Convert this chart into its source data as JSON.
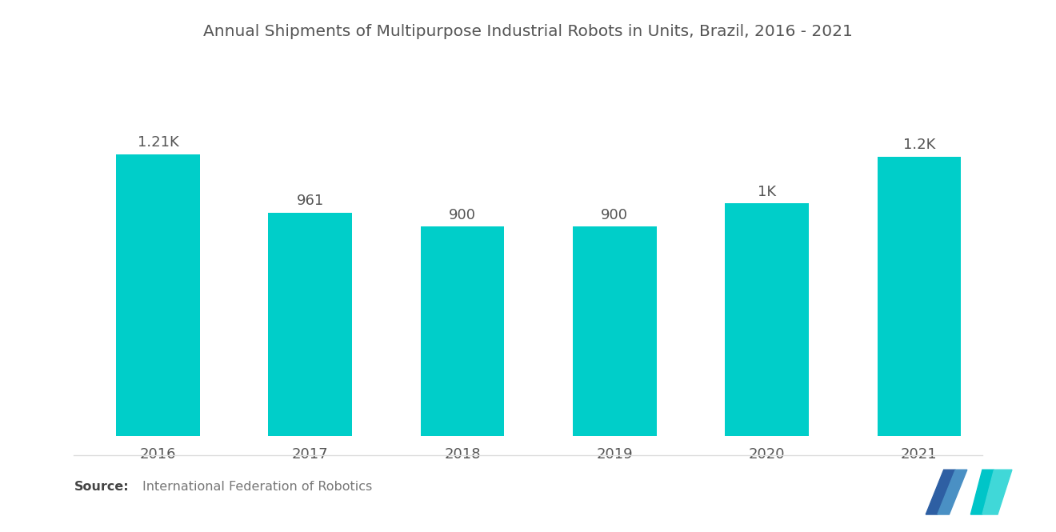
{
  "title": "Annual Shipments of Multipurpose Industrial Robots in Units, Brazil, 2016 - 2021",
  "categories": [
    "2016",
    "2017",
    "2018",
    "2019",
    "2020",
    "2021"
  ],
  "values": [
    1210,
    961,
    900,
    900,
    1000,
    1200
  ],
  "labels": [
    "1.21K",
    "961",
    "900",
    "900",
    "1K",
    "1.2K"
  ],
  "bar_color": "#00CEC9",
  "background_color": "#FFFFFF",
  "ylim": [
    0,
    1600
  ],
  "bar_width": 0.55,
  "title_fontsize": 14.5,
  "label_fontsize": 13,
  "tick_fontsize": 13,
  "source_bold": "Source:",
  "source_detail": "  International Federation of Robotics",
  "source_fontsize": 11.5,
  "logo_colors": {
    "left_dark": "#2E5FA3",
    "left_light": "#4A90C4",
    "right_teal": "#00C5C8",
    "right_light": "#40D8D8"
  }
}
